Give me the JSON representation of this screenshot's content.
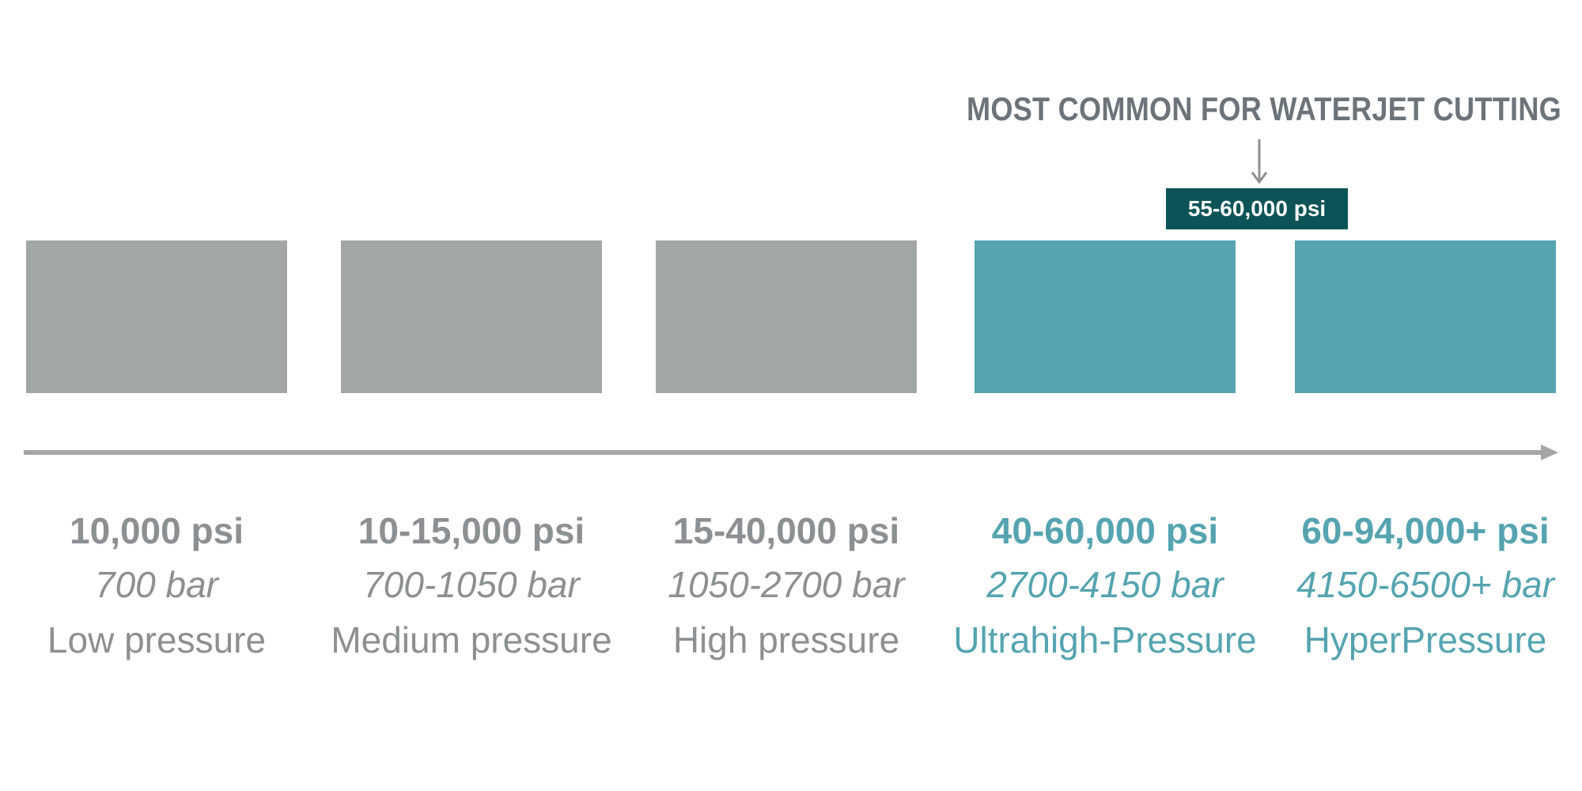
{
  "callout": {
    "title": "MOST COMMON FOR WATERJET CUTTING",
    "badge": "55-60,000 psi"
  },
  "colors": {
    "gray_block": "#a3a6a7",
    "teal_block": "#55a4b0",
    "badge_bg": "#0b5357",
    "gray_text": "#8d9092",
    "teal_text": "#55a4b0",
    "axis": "#a3a6a7",
    "title_text": "#6c7379"
  },
  "levels": [
    {
      "psi": "10,000 psi",
      "bar": "700 bar",
      "name": "Low pressure",
      "tone": "gray"
    },
    {
      "psi": "10-15,000 psi",
      "bar": "700-1050 bar",
      "name": "Medium pressure",
      "tone": "gray"
    },
    {
      "psi": "15-40,000 psi",
      "bar": "1050-2700 bar",
      "name": "High pressure",
      "tone": "gray"
    },
    {
      "psi": "40-60,000 psi",
      "bar": "2700-4150 bar",
      "name": "Ultrahigh-Pressure",
      "tone": "teal"
    },
    {
      "psi": "60-94,000+ psi",
      "bar": "4150-6500+ bar",
      "name": "HyperPressure",
      "tone": "teal"
    }
  ]
}
